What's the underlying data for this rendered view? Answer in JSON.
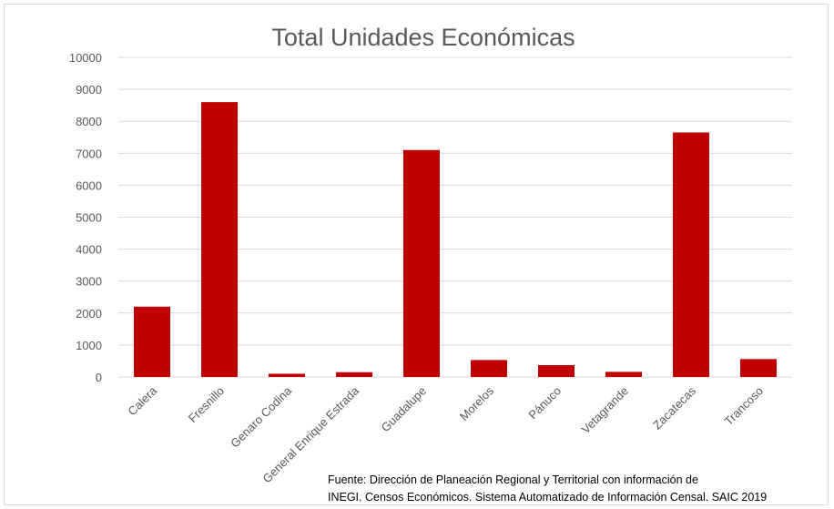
{
  "chart_data": {
    "type": "bar",
    "title": "Total Unidades Económicas",
    "xlabel": "",
    "ylabel": "",
    "categories": [
      "Calera",
      "Fresnillo",
      "Genaro Codina",
      "General Enrique Estrada",
      "Guadalupe",
      "Morelos",
      "Pánuco",
      "Vetagrande",
      "Zacatecas",
      "Trancoso"
    ],
    "values": [
      2200,
      8600,
      100,
      150,
      7100,
      530,
      370,
      160,
      7650,
      560
    ],
    "ylim": [
      0,
      10000
    ],
    "yticks": [
      "0",
      "1000",
      "2000",
      "3000",
      "4000",
      "5000",
      "6000",
      "7000",
      "8000",
      "9000",
      "10000"
    ],
    "grid": true,
    "legend": "none",
    "bar_color": "#c00000",
    "gridline_color": "#d9d9d9",
    "text_color": "#595959"
  },
  "source_note": {
    "line1": "Fuente: Dirección de Planeación Regional y Territorial con información de",
    "line2": "INEGI. Censos Económicos. Sistema Automatizado de Información Censal. SAIC 2019"
  }
}
